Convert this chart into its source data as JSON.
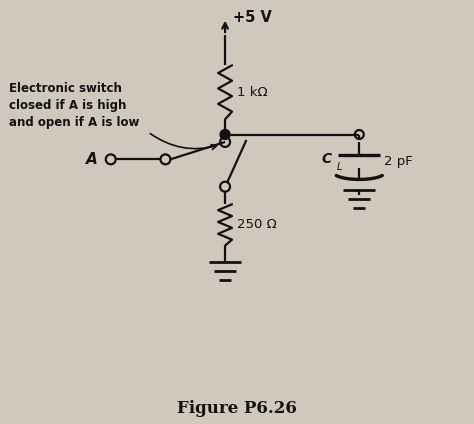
{
  "title": "Figure P6.26",
  "bg_color": "#cec9bc",
  "label_switch": "Electronic switch\nclosed if A is high\nand open if A is low",
  "label_r1": "1 kΩ",
  "label_r2": "250 Ω",
  "label_cap": "2 pF",
  "label_cl": "C",
  "label_l": "L",
  "label_vcc": "+5 V",
  "label_a": "A",
  "line_color": "#111111",
  "dot_color": "#111111",
  "title_fontsize": 13
}
